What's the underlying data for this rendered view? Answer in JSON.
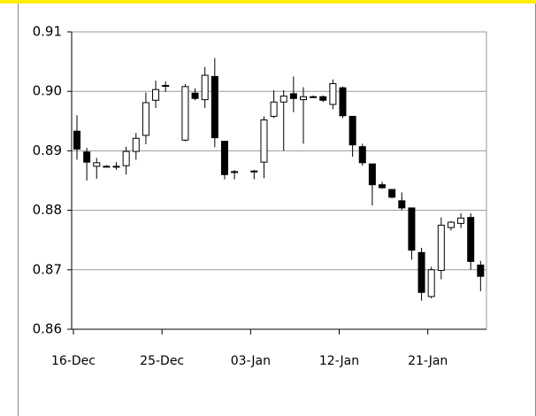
{
  "chart_data": {
    "type": "candlestick",
    "x": [
      "16-Dec",
      null,
      null,
      null,
      null,
      null,
      null,
      null,
      null,
      "25-Dec",
      null,
      null,
      null,
      null,
      null,
      null,
      null,
      null,
      "03-Jan",
      null,
      null,
      null,
      null,
      null,
      null,
      null,
      null,
      "12-Jan",
      null,
      null,
      null,
      null,
      null,
      null,
      null,
      null,
      "21-Jan",
      null,
      null,
      null,
      null,
      null
    ],
    "open": [
      0.8933,
      0.8898,
      0.8874,
      0.8874,
      0.8874,
      0.8875,
      0.8899,
      0.8926,
      0.8985,
      0.901,
      null,
      0.8918,
      0.8997,
      0.8986,
      0.9025,
      0.8916,
      0.8865,
      null,
      0.8866,
      0.8881,
      0.8958,
      0.8982,
      0.8996,
      0.8986,
      0.8991,
      0.8991,
      0.8978,
      0.9006,
      0.8958,
      0.8907,
      0.8878,
      0.8843,
      0.8835,
      0.8816,
      0.8804,
      0.8729,
      0.8655,
      0.8699,
      0.8771,
      0.8778,
      0.8788,
      0.8708
    ],
    "high": [
      0.896,
      0.8905,
      0.8888,
      0.8876,
      0.8881,
      0.8907,
      0.893,
      0.8998,
      0.9018,
      0.9017,
      null,
      0.9012,
      0.9005,
      0.9041,
      0.9056,
      0.8916,
      0.8868,
      null,
      0.8868,
      0.8958,
      0.9002,
      0.9002,
      0.9025,
      0.9007,
      0.8993,
      0.8993,
      0.902,
      0.9008,
      0.8958,
      0.8912,
      0.8878,
      0.8848,
      0.8835,
      0.883,
      0.8804,
      0.8737,
      0.8705,
      0.8788,
      0.8782,
      0.8795,
      0.8795,
      0.8715
    ],
    "low": [
      0.8885,
      0.885,
      0.8853,
      0.8873,
      0.8868,
      0.886,
      0.8885,
      0.8911,
      0.8972,
      0.8999,
      null,
      0.8916,
      0.8985,
      0.8972,
      0.8906,
      0.8852,
      0.8852,
      null,
      0.8852,
      0.8854,
      0.8955,
      0.89,
      0.8965,
      0.8912,
      0.8989,
      0.8982,
      0.897,
      0.8955,
      0.889,
      0.8875,
      0.8808,
      0.8836,
      0.882,
      0.88,
      0.8717,
      0.8648,
      0.8652,
      0.8684,
      0.8766,
      0.877,
      0.87,
      0.8664
    ],
    "close": [
      0.8903,
      0.8881,
      0.888,
      0.8874,
      0.8874,
      0.8899,
      0.8921,
      0.8981,
      0.9003,
      0.901,
      null,
      0.9008,
      0.8988,
      0.9027,
      0.8922,
      0.886,
      0.8865,
      null,
      0.8866,
      0.8952,
      0.8982,
      0.8992,
      0.8988,
      0.8991,
      0.8991,
      0.8985,
      0.9013,
      0.8959,
      0.891,
      0.888,
      0.8843,
      0.8838,
      0.8822,
      0.8804,
      0.8733,
      0.8662,
      0.87,
      0.8775,
      0.878,
      0.8787,
      0.8714,
      0.8689
    ],
    "up_color": "#ffffff",
    "down_color": "#000000",
    "ylim": [
      0.86,
      0.91
    ],
    "yticks": [
      0.86,
      0.87,
      0.88,
      0.89,
      {
        "value": 0.9,
        "label": "0.90"
      },
      0.91
    ],
    "grid": true
  }
}
